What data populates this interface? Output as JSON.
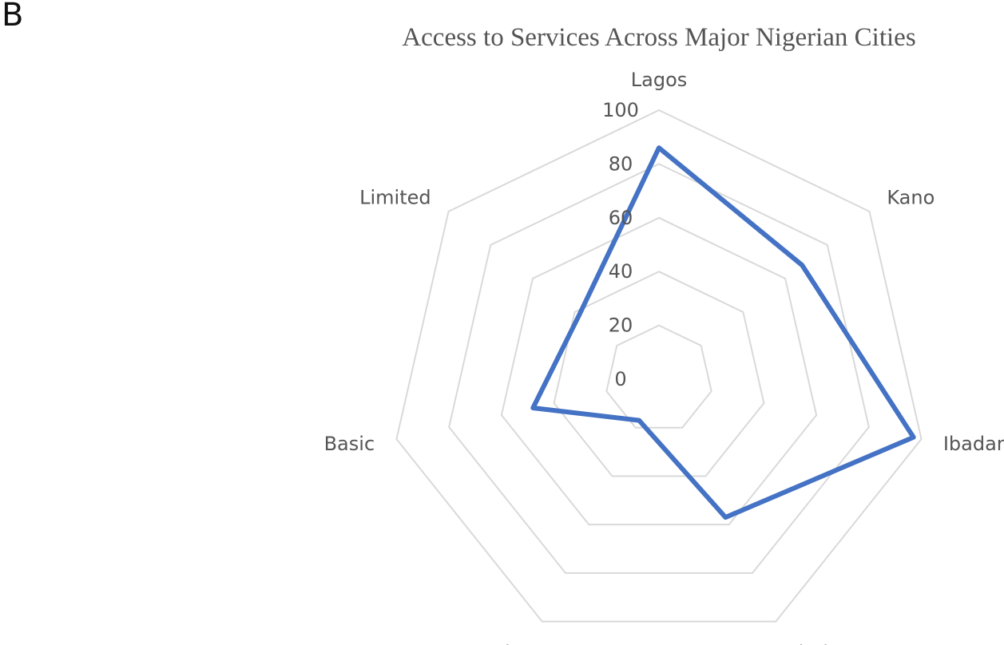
{
  "panel_label": "B",
  "chart_data": {
    "type": "radar",
    "title": "Access to Services Across Major Nigerian Cities",
    "categories": [
      "Lagos",
      "Kano",
      "Ibadan",
      "Abuja",
      "No Service",
      "Basic",
      "Limited"
    ],
    "series": [
      {
        "values": [
          86,
          68,
          97,
          57,
          17,
          48,
          38
        ]
      }
    ],
    "radial_range": [
      0,
      100
    ],
    "radial_ticks": [
      0,
      20,
      40,
      60,
      80,
      100
    ],
    "gridlines": true,
    "legend": "none",
    "colors": {
      "series": "#4472C4",
      "grid": "#D9D9D9",
      "text": "#595959"
    }
  }
}
